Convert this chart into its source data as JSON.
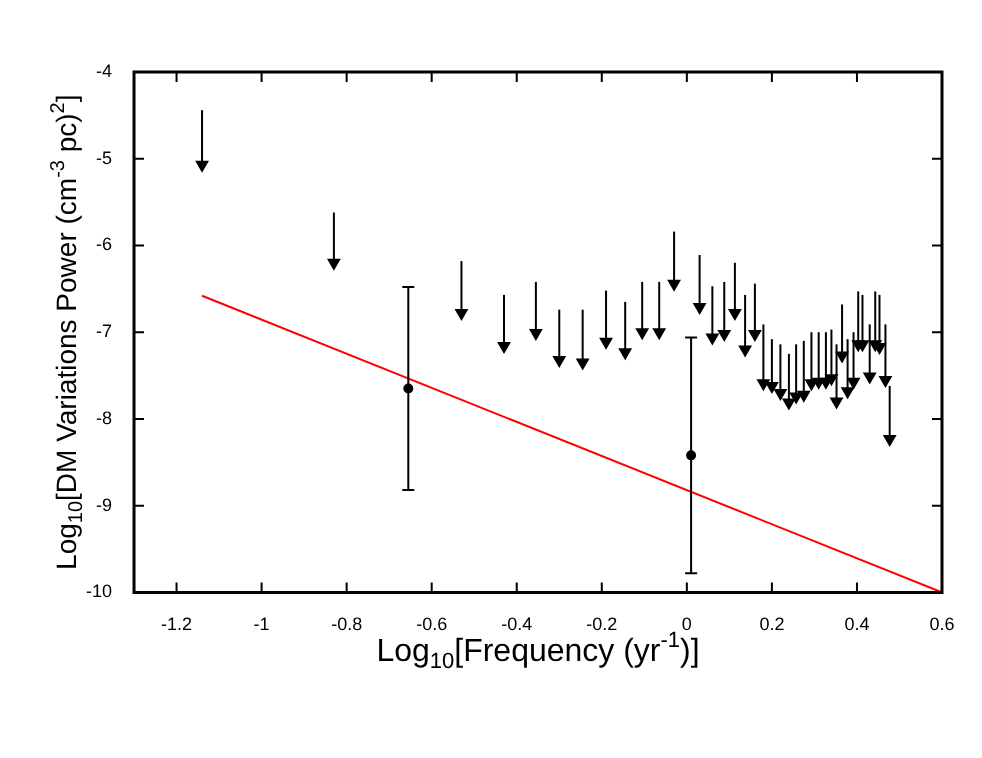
{
  "chart_data": {
    "type": "scatter",
    "xlabel": "Log$_{10}$[Frequency (yr$^{-1}$)]",
    "ylabel": "Log$_{10}$[DM Variations Power (cm$^{-3}$ pc)$^{2}$]",
    "xlim": [
      -1.3,
      0.6
    ],
    "ylim": [
      -10,
      -4
    ],
    "xticks": [
      -1.2,
      -1,
      -0.8,
      -0.6,
      -0.4,
      -0.2,
      0,
      0.2,
      0.4,
      0.6
    ],
    "yticks": [
      -10,
      -9,
      -8,
      -7,
      -6,
      -5,
      -4
    ],
    "series": [
      {
        "color": "#000000",
        "marker": "triangle",
        "x": [
          -1.14,
          -0.83,
          -0.53,
          -0.43,
          -0.355,
          -0.3,
          -0.245,
          -0.19,
          -0.145,
          -0.105,
          -0.065,
          -0.03,
          0.03,
          0.06,
          0.088,
          0.113,
          0.137,
          0.16,
          0.18,
          0.2,
          0.22,
          0.24,
          0.257,
          0.275,
          0.293,
          0.31,
          0.327,
          0.34,
          0.352,
          0.365,
          0.378,
          0.392,
          0.403,
          0.413,
          0.43,
          0.443,
          0.453,
          0.467,
          0.477
        ],
        "values": [
          -5.07,
          -6.2,
          -6.78,
          -7.16,
          -7.01,
          -7.32,
          -7.35,
          -7.11,
          -7.23,
          -7.0,
          -7.0,
          -6.44,
          -6.71,
          -7.06,
          -7.02,
          -6.78,
          -7.2,
          -7.02,
          -7.59,
          -7.62,
          -7.7,
          -7.81,
          -7.74,
          -7.72,
          -7.59,
          -7.57,
          -7.57,
          -7.53,
          -7.8,
          -7.27,
          -7.68,
          -7.57,
          -7.14,
          -7.14,
          -7.51,
          -7.14,
          -7.17,
          -7.55,
          -8.23
        ],
        "errors": [
          [
            -5.07,
            -4.44
          ],
          [
            -6.2,
            -5.62
          ],
          [
            -6.78,
            -6.18
          ],
          [
            -7.16,
            -6.57
          ],
          [
            -7.01,
            -6.42
          ],
          [
            -7.32,
            -6.74
          ],
          [
            -7.35,
            -6.74
          ],
          [
            -7.11,
            -6.52
          ],
          [
            -7.23,
            -6.65
          ],
          [
            -7.0,
            -6.42
          ],
          [
            -7.0,
            -6.42
          ],
          [
            -6.44,
            -5.84
          ],
          [
            -6.71,
            -6.11
          ],
          [
            -7.06,
            -6.47
          ],
          [
            -7.02,
            -6.42
          ],
          [
            -6.78,
            -6.2
          ],
          [
            -7.2,
            -6.57
          ],
          [
            -7.02,
            -6.44
          ],
          [
            -7.59,
            -6.91
          ],
          [
            -7.62,
            -7.08
          ],
          [
            -7.7,
            -7.14
          ],
          [
            -7.81,
            -7.25
          ],
          [
            -7.74,
            -7.14
          ],
          [
            -7.72,
            -7.1
          ],
          [
            -7.59,
            -7.0
          ],
          [
            -7.57,
            -7.0
          ],
          [
            -7.57,
            -7.0
          ],
          [
            -7.53,
            -6.97
          ],
          [
            -7.8,
            -7.14
          ],
          [
            -7.27,
            -6.68
          ],
          [
            -7.68,
            -7.08
          ],
          [
            -7.57,
            -7.0
          ],
          [
            -7.14,
            -6.53
          ],
          [
            -7.14,
            -6.57
          ],
          [
            -7.51,
            -6.91
          ],
          [
            -7.14,
            -6.53
          ],
          [
            -7.17,
            -6.57
          ],
          [
            -7.55,
            -6.91
          ],
          [
            -8.23,
            -7.62
          ]
        ]
      },
      {
        "color": "#000000",
        "marker": "circle",
        "x": [
          -0.655,
          0.01
        ],
        "values": [
          -7.65,
          -8.42
        ],
        "errors": [
          1.17,
          1.36
        ]
      },
      {
        "type": "line",
        "color": "#ff0000",
        "x": [
          -1.14,
          0.6
        ],
        "values": [
          -6.58,
          -10
        ]
      }
    ]
  }
}
